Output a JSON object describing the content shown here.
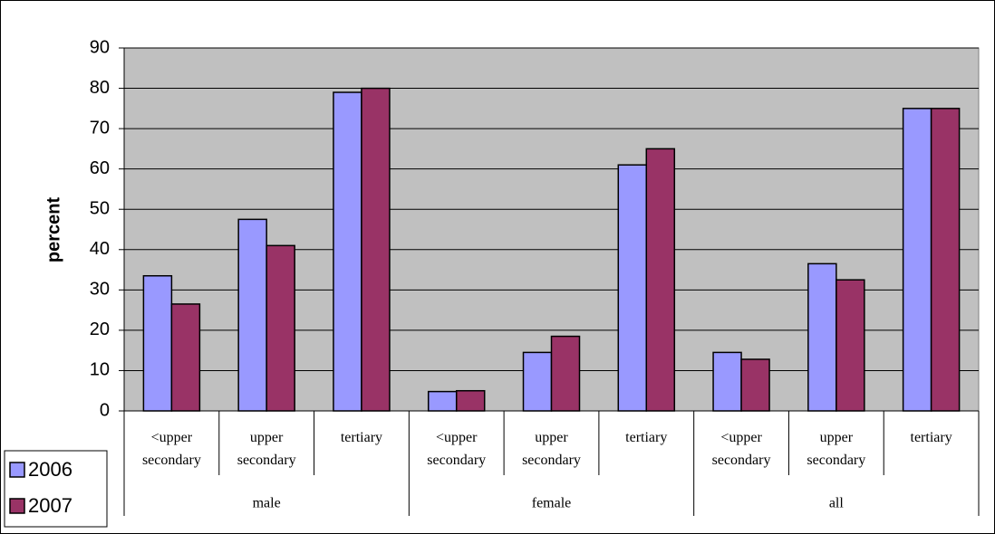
{
  "chart_data": {
    "type": "bar",
    "y_label": "percent",
    "categories": [
      "<upper secondary",
      "upper secondary",
      "tertiary",
      "<upper secondary",
      "upper secondary",
      "tertiary",
      "<upper secondary",
      "upper secondary",
      "tertiary"
    ],
    "groups": [
      "male",
      "female",
      "all"
    ],
    "series": [
      {
        "name": "2006",
        "color": "#9999ff",
        "values": [
          33.5,
          47.5,
          79,
          4.8,
          14.5,
          61,
          14.5,
          36.5,
          75
        ]
      },
      {
        "name": "2007",
        "color": "#993366",
        "values": [
          26.5,
          41,
          80,
          5,
          18.5,
          65,
          12.8,
          32.5,
          75
        ]
      }
    ],
    "ylim": [
      0,
      90
    ],
    "yticks": [
      0,
      10,
      20,
      30,
      40,
      50,
      60,
      70,
      80,
      90
    ],
    "grid": true,
    "legend": "bottom-left"
  }
}
